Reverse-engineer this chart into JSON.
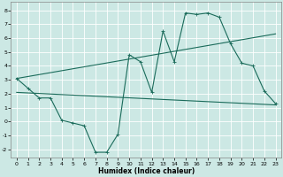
{
  "bg_color": "#cce8e4",
  "grid_color": "#ffffff",
  "line_color": "#1a6b5a",
  "xlim": [
    -0.5,
    23.5
  ],
  "ylim": [
    -2.6,
    8.6
  ],
  "xticks": [
    0,
    1,
    2,
    3,
    4,
    5,
    6,
    7,
    8,
    9,
    10,
    11,
    12,
    13,
    14,
    15,
    16,
    17,
    18,
    19,
    20,
    21,
    22,
    23
  ],
  "yticks": [
    -2,
    -1,
    0,
    1,
    2,
    3,
    4,
    5,
    6,
    7,
    8
  ],
  "xlabel": "Humidex (Indice chaleur)",
  "line1_x": [
    0,
    1,
    2,
    3,
    4,
    5,
    6,
    7,
    8,
    9,
    10,
    11,
    12,
    13,
    14,
    15,
    16,
    17,
    18,
    19,
    20,
    21,
    22,
    23
  ],
  "line1_y": [
    3.1,
    2.4,
    1.7,
    1.7,
    0.1,
    -0.1,
    -0.3,
    -2.2,
    -2.2,
    -0.9,
    4.8,
    4.3,
    2.1,
    6.5,
    4.3,
    7.8,
    7.7,
    7.8,
    7.5,
    5.6,
    4.2,
    4.0,
    2.2,
    1.3
  ],
  "line2_x": [
    0,
    23
  ],
  "line2_y": [
    3.1,
    6.3
  ],
  "line3_x": [
    0,
    23
  ],
  "line3_y": [
    2.1,
    1.2
  ]
}
